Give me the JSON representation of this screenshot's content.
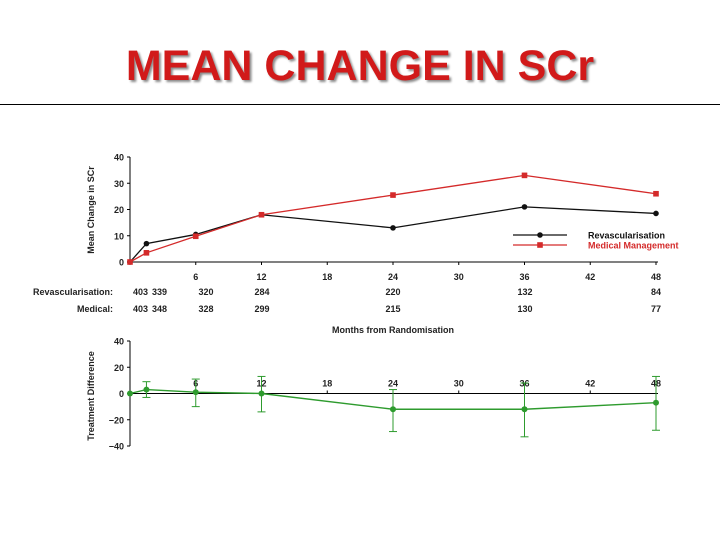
{
  "slide": {
    "title": "MEAN CHANGE IN SCr"
  },
  "colors": {
    "title": "#d11a1a",
    "revasc": "#111111",
    "medical": "#d42a2a",
    "difference": "#2e9b2e"
  },
  "chart_data": [
    {
      "type": "line",
      "title": "",
      "xlabel": "Months from Randomisation",
      "ylabel": "Mean Change in SCr",
      "xlim": [
        0,
        48
      ],
      "ylim": [
        0,
        40
      ],
      "x_ticks": [
        "6",
        "12",
        "18",
        "24",
        "30",
        "36",
        "42",
        "48"
      ],
      "y_ticks": [
        "0",
        "10",
        "20",
        "30",
        "40"
      ],
      "series": [
        {
          "name": "Revascularisation",
          "x": [
            0,
            1.5,
            6,
            12,
            24,
            36,
            48
          ],
          "values": [
            0,
            7,
            10.5,
            18,
            13,
            21,
            18.5
          ]
        },
        {
          "name": "Medical Management",
          "x": [
            0,
            1.5,
            6,
            12,
            24,
            36,
            48
          ],
          "values": [
            0,
            3.5,
            9.8,
            18,
            25.5,
            33,
            26
          ]
        }
      ],
      "legend_position": "bottom-right",
      "at_risk": {
        "rows": [
          {
            "label": "Revascularisation:",
            "values": [
              "403",
              "339",
              "320",
              "284",
              "220",
              "132",
              "84"
            ]
          },
          {
            "label": "Medical:",
            "values": [
              "403",
              "348",
              "328",
              "299",
              "215",
              "130",
              "77"
            ]
          }
        ]
      }
    },
    {
      "type": "line",
      "title": "",
      "xlabel": "",
      "ylabel": "Treatment Difference",
      "xlim": [
        0,
        48
      ],
      "ylim": [
        -40,
        40
      ],
      "x_ticks": [
        "6",
        "12",
        "18",
        "24",
        "30",
        "36",
        "42",
        "48"
      ],
      "y_ticks": [
        "40",
        "20",
        "0",
        "−20",
        "−40"
      ],
      "series": [
        {
          "name": "Treatment Difference",
          "x": [
            0,
            1.5,
            6,
            12,
            24,
            36,
            48
          ],
          "values": [
            0,
            3,
            1,
            0,
            -12,
            -12,
            -7
          ],
          "err_low": [
            0,
            -3,
            -10,
            -14,
            -29,
            -33,
            -28
          ],
          "err_high": [
            0,
            9,
            11,
            13,
            3,
            8,
            13
          ]
        }
      ]
    }
  ]
}
